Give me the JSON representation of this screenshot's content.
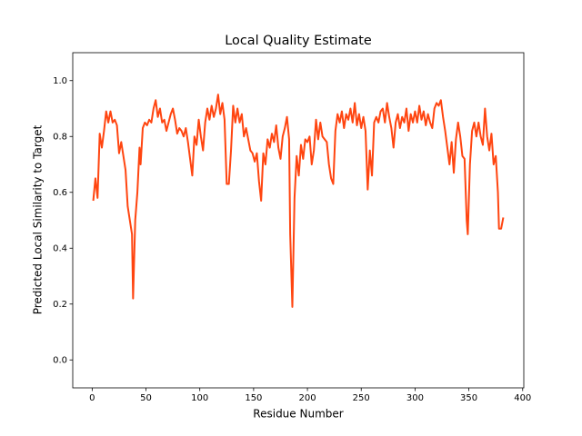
{
  "chart_data": {
    "type": "line",
    "title": "Local Quality Estimate",
    "x_label": "Residue Number",
    "y_label": "Predicted Local Similarity to Target",
    "xlim": [
      -18.05,
      401.05
    ],
    "ylim": [
      -0.1,
      1.1
    ],
    "xticks": [
      0,
      50,
      100,
      150,
      200,
      250,
      300,
      350,
      400
    ],
    "yticks": [
      {
        "value": 0,
        "label": "0.0"
      },
      {
        "value": 0.2,
        "label": "0.2"
      },
      {
        "value": 0.4,
        "label": "0.4"
      },
      {
        "value": 0.6,
        "label": "0.6"
      },
      {
        "value": 0.8,
        "label": "0.8"
      },
      {
        "value": 1,
        "label": "1.0"
      }
    ],
    "series": [
      {
        "color": "#ff4510",
        "x": [
          1,
          3,
          5,
          7,
          9,
          11,
          13,
          15,
          17,
          19,
          21,
          23,
          25,
          27,
          29,
          31,
          33,
          35,
          37,
          38,
          40,
          42,
          44,
          45,
          47,
          49,
          51,
          53,
          55,
          57,
          59,
          61,
          63,
          65,
          67,
          69,
          71,
          73,
          75,
          77,
          79,
          81,
          83,
          85,
          87,
          89,
          91,
          93,
          95,
          97,
          99,
          101,
          103,
          105,
          107,
          109,
          111,
          113,
          115,
          117,
          119,
          121,
          123,
          125,
          127,
          129,
          131,
          133,
          135,
          137,
          139,
          141,
          143,
          145,
          147,
          149,
          151,
          153,
          155,
          157,
          159,
          161,
          163,
          165,
          167,
          169,
          171,
          173,
          175,
          177,
          179,
          181,
          183,
          184,
          186,
          188,
          190,
          192,
          194,
          196,
          198,
          200,
          202,
          204,
          206,
          208,
          210,
          212,
          214,
          216,
          218,
          220,
          222,
          224,
          226,
          228,
          230,
          232,
          234,
          236,
          238,
          240,
          242,
          244,
          246,
          248,
          250,
          252,
          254,
          256,
          258,
          260,
          262,
          264,
          266,
          268,
          270,
          272,
          274,
          276,
          278,
          280,
          282,
          284,
          286,
          288,
          290,
          292,
          294,
          296,
          298,
          300,
          302,
          304,
          306,
          308,
          310,
          312,
          314,
          316,
          318,
          320,
          322,
          324,
          326,
          328,
          330,
          332,
          334,
          336,
          338,
          340,
          342,
          344,
          346,
          348,
          349,
          351,
          353,
          355,
          357,
          359,
          361,
          363,
          365,
          367,
          369,
          371,
          373,
          375,
          377,
          378,
          380,
          382
        ],
        "values": [
          0.57,
          0.65,
          0.58,
          0.81,
          0.76,
          0.82,
          0.89,
          0.85,
          0.89,
          0.85,
          0.86,
          0.84,
          0.74,
          0.78,
          0.73,
          0.68,
          0.55,
          0.5,
          0.45,
          0.22,
          0.5,
          0.6,
          0.76,
          0.7,
          0.83,
          0.85,
          0.84,
          0.86,
          0.85,
          0.9,
          0.93,
          0.87,
          0.9,
          0.85,
          0.86,
          0.82,
          0.85,
          0.88,
          0.9,
          0.86,
          0.81,
          0.83,
          0.82,
          0.8,
          0.83,
          0.78,
          0.72,
          0.66,
          0.8,
          0.77,
          0.86,
          0.8,
          0.75,
          0.85,
          0.9,
          0.86,
          0.91,
          0.87,
          0.9,
          0.95,
          0.88,
          0.92,
          0.86,
          0.63,
          0.63,
          0.75,
          0.91,
          0.85,
          0.9,
          0.85,
          0.88,
          0.8,
          0.83,
          0.79,
          0.75,
          0.74,
          0.71,
          0.74,
          0.64,
          0.57,
          0.74,
          0.7,
          0.79,
          0.76,
          0.81,
          0.78,
          0.84,
          0.76,
          0.72,
          0.8,
          0.83,
          0.87,
          0.79,
          0.45,
          0.19,
          0.58,
          0.73,
          0.66,
          0.77,
          0.72,
          0.79,
          0.78,
          0.8,
          0.7,
          0.75,
          0.86,
          0.79,
          0.85,
          0.8,
          0.79,
          0.78,
          0.7,
          0.65,
          0.63,
          0.82,
          0.88,
          0.85,
          0.89,
          0.83,
          0.88,
          0.86,
          0.9,
          0.85,
          0.92,
          0.84,
          0.88,
          0.83,
          0.87,
          0.82,
          0.61,
          0.75,
          0.66,
          0.85,
          0.87,
          0.85,
          0.89,
          0.9,
          0.85,
          0.92,
          0.87,
          0.83,
          0.76,
          0.85,
          0.88,
          0.83,
          0.87,
          0.85,
          0.9,
          0.82,
          0.88,
          0.85,
          0.89,
          0.85,
          0.91,
          0.86,
          0.89,
          0.84,
          0.88,
          0.85,
          0.83,
          0.9,
          0.92,
          0.91,
          0.93,
          0.87,
          0.82,
          0.76,
          0.7,
          0.78,
          0.67,
          0.79,
          0.85,
          0.8,
          0.73,
          0.72,
          0.5,
          0.45,
          0.7,
          0.82,
          0.85,
          0.8,
          0.85,
          0.8,
          0.77,
          0.9,
          0.8,
          0.75,
          0.81,
          0.7,
          0.73,
          0.6,
          0.47,
          0.47,
          0.51
        ]
      }
    ]
  }
}
